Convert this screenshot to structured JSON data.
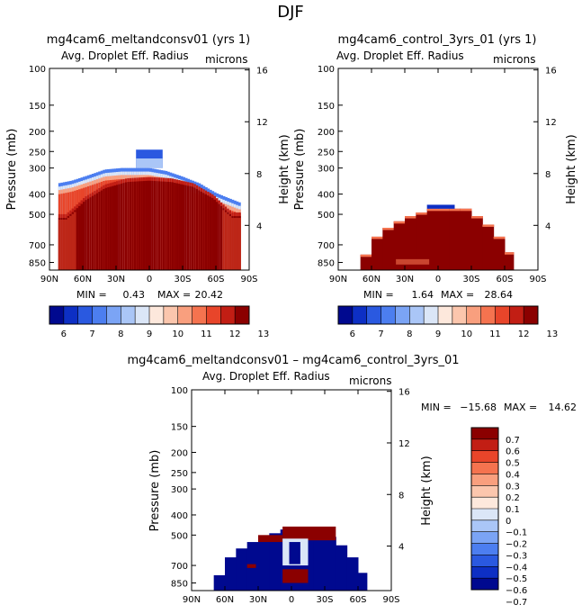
{
  "figure": {
    "title": "DJF",
    "variable": "Avg. Droplet Eff. Radius",
    "units": "microns"
  },
  "colors": {
    "centered_colorbar": [
      "#00098f",
      "#0d2fc4",
      "#2a59e0",
      "#4c7ef0",
      "#7ba4f5",
      "#aac6f7",
      "#dbe6f7",
      "#fde8dc",
      "#fbc6ad",
      "#f99f7e",
      "#f5734f",
      "#e8452a",
      "#c21e14",
      "#8b0000"
    ],
    "diff_colorbar": [
      "#00098f",
      "#0d2fc4",
      "#2a59e0",
      "#4c7ef0",
      "#7ba4f5",
      "#aac6f7",
      "#dbe6f7",
      "#fde8dc",
      "#fbc6ad",
      "#f99f7e",
      "#f5734f",
      "#e8452a",
      "#c21e14",
      "#8b0000"
    ]
  },
  "chart_data": [
    {
      "type": "heatmap",
      "id": "panel1",
      "title": "mg4cam6_meltandconsv01 (yrs 1)",
      "subtitle_left": "Avg. Droplet Eff. Radius",
      "subtitle_right": "microns",
      "xlabel": "",
      "ylabel": "Pressure (mb)",
      "ylabel_right": "Height (km)",
      "xlim": [
        90,
        -90
      ],
      "ylim_pressure": [
        100,
        925
      ],
      "x_ticks": [
        90,
        60,
        30,
        0,
        -30,
        -60,
        -90
      ],
      "x_tick_labels": [
        "90N",
        "60N",
        "30N",
        "0",
        "30S",
        "60S",
        "90S"
      ],
      "y_ticks": [
        100,
        150,
        200,
        250,
        300,
        400,
        500,
        700,
        850
      ],
      "y_tick_labels": [
        "100",
        "150",
        "200",
        "250",
        "300",
        "400",
        "500",
        "700",
        "850"
      ],
      "height_ticks": [
        4,
        8,
        12,
        16
      ],
      "height_tick_labels": [
        "4",
        "8",
        "12",
        "16"
      ],
      "min_label": "MIN =",
      "min_value": "0.43",
      "max_label": "MAX =",
      "max_value": "20.42",
      "colorbar_labels": [
        "6",
        "7",
        "8",
        "9",
        "10",
        "11",
        "12",
        "13"
      ],
      "field": {
        "lat_start": 82,
        "lat_end": -82,
        "top_pressure": [
          355,
          345,
          325,
          305,
          300,
          300,
          300,
          310,
          330,
          355,
          395,
          440
        ],
        "top_lats": [
          82,
          70,
          55,
          40,
          25,
          10,
          0,
          -15,
          -30,
          -45,
          -60,
          -82
        ],
        "blue_cap_lats": [
          12,
          -12
        ],
        "blue_cap_top": 245,
        "mid_lats": [
          75,
          58,
          40,
          20,
          0,
          -20,
          -40,
          -58,
          -75
        ],
        "core_top": [
          520,
          430,
          375,
          350,
          345,
          350,
          370,
          420,
          510
        ]
      }
    },
    {
      "type": "heatmap",
      "id": "panel2",
      "title": "mg4cam6_control_3yrs_01 (yrs 1)",
      "subtitle_left": "Avg. Droplet Eff. Radius",
      "subtitle_right": "microns",
      "xlabel": "",
      "ylabel": "Pressure (mb)",
      "ylabel_right": "Height (km)",
      "xlim": [
        90,
        -90
      ],
      "ylim_pressure": [
        100,
        925
      ],
      "x_ticks": [
        90,
        60,
        30,
        0,
        -30,
        -60,
        -90
      ],
      "x_tick_labels": [
        "90N",
        "60N",
        "30N",
        "0",
        "30S",
        "60S",
        "90S"
      ],
      "y_ticks": [
        100,
        150,
        200,
        250,
        300,
        400,
        500,
        700,
        850
      ],
      "y_tick_labels": [
        "100",
        "150",
        "200",
        "250",
        "300",
        "400",
        "500",
        "700",
        "850"
      ],
      "height_ticks": [
        4,
        8,
        12,
        16
      ],
      "height_tick_labels": [
        "4",
        "8",
        "12",
        "16"
      ],
      "min_label": "MIN =",
      "min_value": "1.64",
      "max_label": "MAX =",
      "max_value": "28.64",
      "colorbar_labels": [
        "6",
        "7",
        "8",
        "9",
        "10",
        "11",
        "12",
        "13"
      ],
      "field": {
        "step_lats": [
          70,
          60,
          50,
          40,
          30,
          20,
          10,
          0,
          -10,
          -20,
          -30,
          -40,
          -50,
          -60,
          -68
        ],
        "step_top": [
          900,
          780,
          640,
          580,
          540,
          510,
          490,
          470,
          470,
          470,
          510,
          560,
          640,
          760,
          900
        ]
      }
    },
    {
      "type": "heatmap",
      "id": "panel3",
      "title": "mg4cam6_meltandconsv01 – mg4cam6_control_3yrs_01",
      "subtitle_left": "Avg. Droplet Eff. Radius",
      "subtitle_right": "microns",
      "xlabel": "",
      "ylabel": "Pressure (mb)",
      "ylabel_right": "Height (km)",
      "xlim": [
        90,
        -90
      ],
      "ylim_pressure": [
        100,
        925
      ],
      "x_ticks": [
        90,
        60,
        30,
        0,
        -30,
        -60,
        -90
      ],
      "x_tick_labels": [
        "90N",
        "60N",
        "30N",
        "0",
        "30S",
        "60S",
        "90S"
      ],
      "y_ticks": [
        100,
        150,
        200,
        250,
        300,
        400,
        500,
        700,
        850
      ],
      "y_tick_labels": [
        "100",
        "150",
        "200",
        "250",
        "300",
        "400",
        "500",
        "700",
        "850"
      ],
      "height_ticks": [
        4,
        8,
        12,
        16
      ],
      "height_tick_labels": [
        "4",
        "8",
        "12",
        "16"
      ],
      "min_label": "MIN =",
      "min_value": "−15.68",
      "max_label": "MAX =",
      "max_value": "14.62",
      "colorbar_labels": [
        "0.7",
        "0.6",
        "0.5",
        "0.4",
        "0.3",
        "0.2",
        "0.1",
        "0",
        "−0.1",
        "−0.2",
        "−0.3",
        "−0.4",
        "−0.5",
        "−0.6",
        "−0.7"
      ],
      "field": {
        "step_lats": [
          70,
          60,
          50,
          40,
          30,
          20,
          10,
          0,
          -10,
          -20,
          -30,
          -40,
          -50,
          -60,
          -68
        ],
        "step_top": [
          900,
          780,
          640,
          580,
          540,
          510,
          490,
          470,
          470,
          470,
          510,
          560,
          640,
          760,
          900
        ]
      }
    }
  ]
}
